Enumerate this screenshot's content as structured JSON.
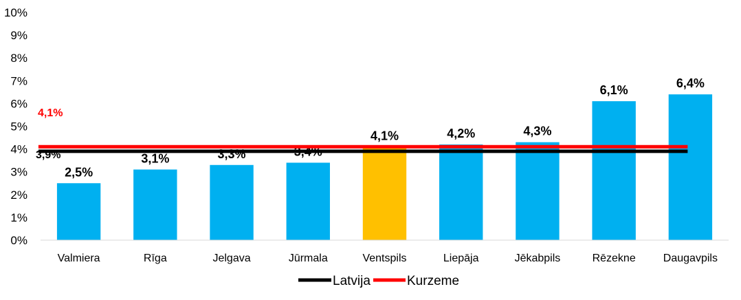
{
  "chart_data": {
    "type": "bar",
    "categories": [
      "Valmiera",
      "Rīga",
      "Jelgava",
      "Jūrmala",
      "Ventspils",
      "Liepāja",
      "Jēkabpils",
      "Rēzekne",
      "Daugavpils"
    ],
    "values": [
      2.5,
      3.1,
      3.3,
      3.4,
      4.1,
      4.2,
      4.3,
      6.1,
      6.4
    ],
    "value_labels": [
      "2,5%",
      "3,1%",
      "3,3%",
      "3,4%",
      "4,1%",
      "4,2%",
      "4,3%",
      "6,1%",
      "6,4%"
    ],
    "highlight_index": 4,
    "colors": {
      "bar": "#00B0F0",
      "highlight": "#FFC000",
      "latvija": "#000000",
      "kurzeme": "#FF0000"
    },
    "ylim": [
      0,
      10
    ],
    "yticks": [
      0,
      1,
      2,
      3,
      4,
      5,
      6,
      7,
      8,
      9,
      10
    ],
    "ytick_labels": [
      "0%",
      "1%",
      "2%",
      "3%",
      "4%",
      "5%",
      "6%",
      "7%",
      "8%",
      "9%",
      "10%"
    ],
    "reference_lines": [
      {
        "name": "Latvija",
        "value": 3.9,
        "label": "3,9%",
        "color": "#000000"
      },
      {
        "name": "Kurzeme",
        "value": 4.1,
        "label": "4,1%",
        "color": "#FF0000"
      }
    ],
    "legend": {
      "position": "bottom",
      "entries": [
        "Latvija",
        "Kurzeme"
      ]
    },
    "grid": false
  }
}
